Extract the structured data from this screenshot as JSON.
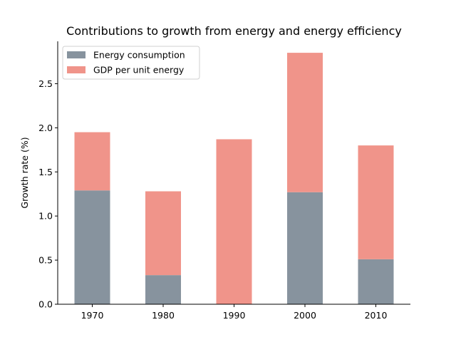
{
  "chart_data": {
    "type": "bar",
    "stacked": true,
    "title": "Contributions to growth from energy and energy efficiency",
    "xlabel": "",
    "ylabel": "Growth rate (%)",
    "categories": [
      "1970",
      "1980",
      "1990",
      "2000",
      "2010"
    ],
    "series": [
      {
        "name": "Energy consumption",
        "color": "#87939e",
        "values": [
          1.29,
          0.33,
          0.0,
          1.27,
          0.51
        ]
      },
      {
        "name": "GDP per unit energy",
        "color": "#f0948a",
        "values": [
          0.66,
          0.95,
          1.87,
          1.58,
          1.29
        ]
      }
    ],
    "ylim": [
      0,
      2.98
    ],
    "yticks": [
      "0.0",
      "0.5",
      "1.0",
      "1.5",
      "2.0",
      "2.5"
    ],
    "grid": false,
    "legend_position": "top-left"
  }
}
